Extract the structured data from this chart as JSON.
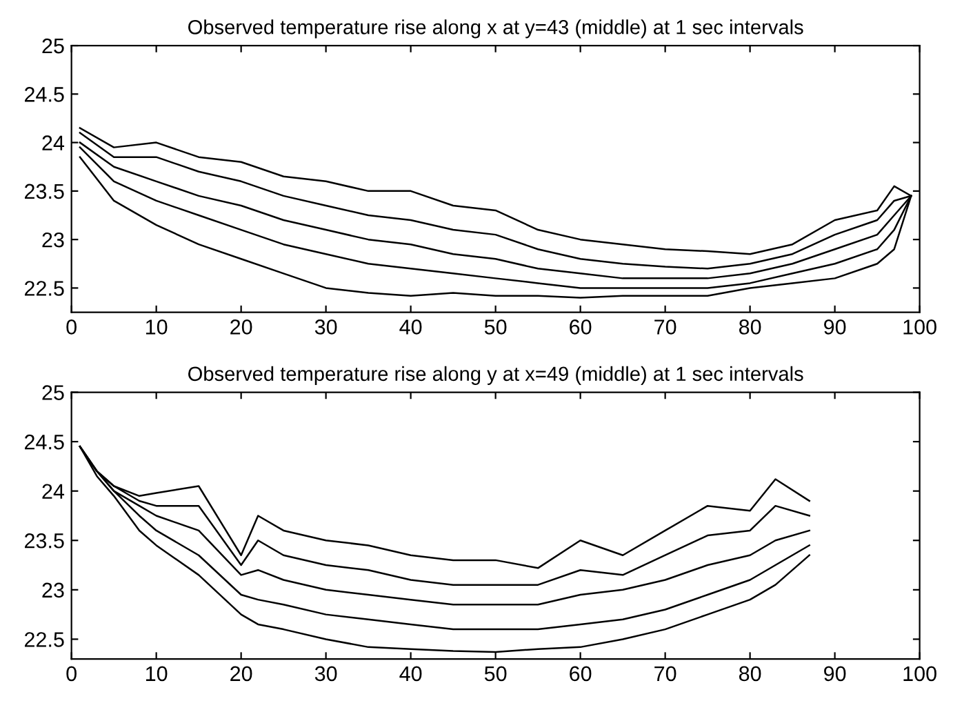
{
  "chart_data": [
    {
      "type": "line",
      "title": "Observed temperature rise along x at y=43 (middle) at 1 sec intervals",
      "x": [
        1,
        5,
        10,
        15,
        20,
        25,
        30,
        35,
        40,
        45,
        50,
        55,
        60,
        65,
        70,
        75,
        80,
        85,
        90,
        95,
        97,
        99
      ],
      "series": [
        {
          "color": "#000000",
          "values": [
            23.85,
            23.4,
            23.15,
            22.95,
            22.8,
            22.65,
            22.5,
            22.45,
            22.42,
            22.45,
            22.42,
            22.42,
            22.4,
            22.42,
            22.42,
            22.42,
            22.5,
            22.55,
            22.6,
            22.75,
            22.9,
            23.45
          ]
        },
        {
          "color": "#000000",
          "values": [
            23.95,
            23.6,
            23.4,
            23.25,
            23.1,
            22.95,
            22.85,
            22.75,
            22.7,
            22.65,
            22.6,
            22.55,
            22.5,
            22.5,
            22.5,
            22.5,
            22.55,
            22.65,
            22.75,
            22.9,
            23.1,
            23.45
          ]
        },
        {
          "color": "#000000",
          "values": [
            24.0,
            23.75,
            23.6,
            23.45,
            23.35,
            23.2,
            23.1,
            23.0,
            22.95,
            22.85,
            22.8,
            22.7,
            22.65,
            22.6,
            22.6,
            22.6,
            22.65,
            22.75,
            22.9,
            23.05,
            23.25,
            23.45
          ]
        },
        {
          "color": "#000000",
          "values": [
            24.1,
            23.85,
            23.85,
            23.7,
            23.6,
            23.45,
            23.35,
            23.25,
            23.2,
            23.1,
            23.05,
            22.9,
            22.8,
            22.75,
            22.72,
            22.7,
            22.75,
            22.85,
            23.05,
            23.2,
            23.4,
            23.45
          ]
        },
        {
          "color": "#000000",
          "values": [
            24.15,
            23.95,
            24.0,
            23.85,
            23.8,
            23.65,
            23.6,
            23.5,
            23.5,
            23.35,
            23.3,
            23.1,
            23.0,
            22.95,
            22.9,
            22.88,
            22.85,
            22.95,
            23.2,
            23.3,
            23.55,
            23.45
          ]
        }
      ],
      "xlim": [
        0,
        100
      ],
      "xticks": [
        0,
        10,
        20,
        30,
        40,
        50,
        60,
        70,
        80,
        90,
        100
      ],
      "ylim": [
        22.25,
        25
      ],
      "yticks": [
        22.5,
        23,
        23.5,
        24,
        24.5,
        25
      ],
      "grid": false
    },
    {
      "type": "line",
      "title": "Observed temperature rise along y at x=49 (middle) at 1 sec intervals",
      "x": [
        1,
        3,
        5,
        8,
        10,
        15,
        20,
        22,
        25,
        30,
        35,
        40,
        45,
        50,
        55,
        60,
        65,
        70,
        75,
        80,
        83,
        87
      ],
      "series": [
        {
          "color": "#000000",
          "values": [
            24.45,
            24.15,
            23.95,
            23.6,
            23.45,
            23.15,
            22.75,
            22.65,
            22.6,
            22.5,
            22.42,
            22.4,
            22.38,
            22.37,
            22.4,
            22.42,
            22.5,
            22.6,
            22.75,
            22.9,
            23.05,
            23.35
          ]
        },
        {
          "color": "#000000",
          "values": [
            24.45,
            24.2,
            24.0,
            23.75,
            23.6,
            23.35,
            22.95,
            22.9,
            22.85,
            22.75,
            22.7,
            22.65,
            22.6,
            22.6,
            22.6,
            22.65,
            22.7,
            22.8,
            22.95,
            23.1,
            23.25,
            23.45
          ]
        },
        {
          "color": "#000000",
          "values": [
            24.45,
            24.2,
            24.0,
            23.85,
            23.75,
            23.6,
            23.15,
            23.2,
            23.1,
            23.0,
            22.95,
            22.9,
            22.85,
            22.85,
            22.85,
            22.95,
            23.0,
            23.1,
            23.25,
            23.35,
            23.5,
            23.6
          ]
        },
        {
          "color": "#000000",
          "values": [
            24.45,
            24.2,
            24.05,
            23.9,
            23.85,
            23.85,
            23.25,
            23.5,
            23.35,
            23.25,
            23.2,
            23.1,
            23.05,
            23.05,
            23.05,
            23.2,
            23.15,
            23.35,
            23.55,
            23.6,
            23.85,
            23.75
          ]
        },
        {
          "color": "#000000",
          "values": [
            24.45,
            24.2,
            24.05,
            23.95,
            23.98,
            24.05,
            23.35,
            23.75,
            23.6,
            23.5,
            23.45,
            23.35,
            23.3,
            23.3,
            23.22,
            23.5,
            23.35,
            23.6,
            23.85,
            23.8,
            24.12,
            23.9
          ]
        }
      ],
      "xlim": [
        0,
        100
      ],
      "xticks": [
        0,
        10,
        20,
        30,
        40,
        50,
        60,
        70,
        80,
        90,
        100
      ],
      "ylim": [
        22.3,
        25
      ],
      "yticks": [
        22.5,
        23,
        23.5,
        24,
        24.5,
        25
      ],
      "grid": false
    }
  ]
}
